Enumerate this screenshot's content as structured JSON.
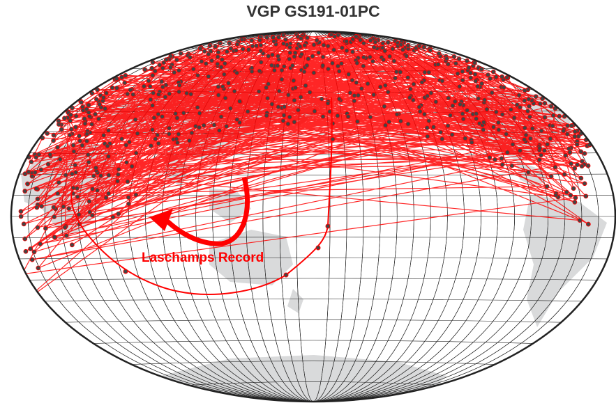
{
  "header": {
    "title": "VGP GS191-01PC"
  },
  "annotation": {
    "label": "Laschamps Record"
  }
}
